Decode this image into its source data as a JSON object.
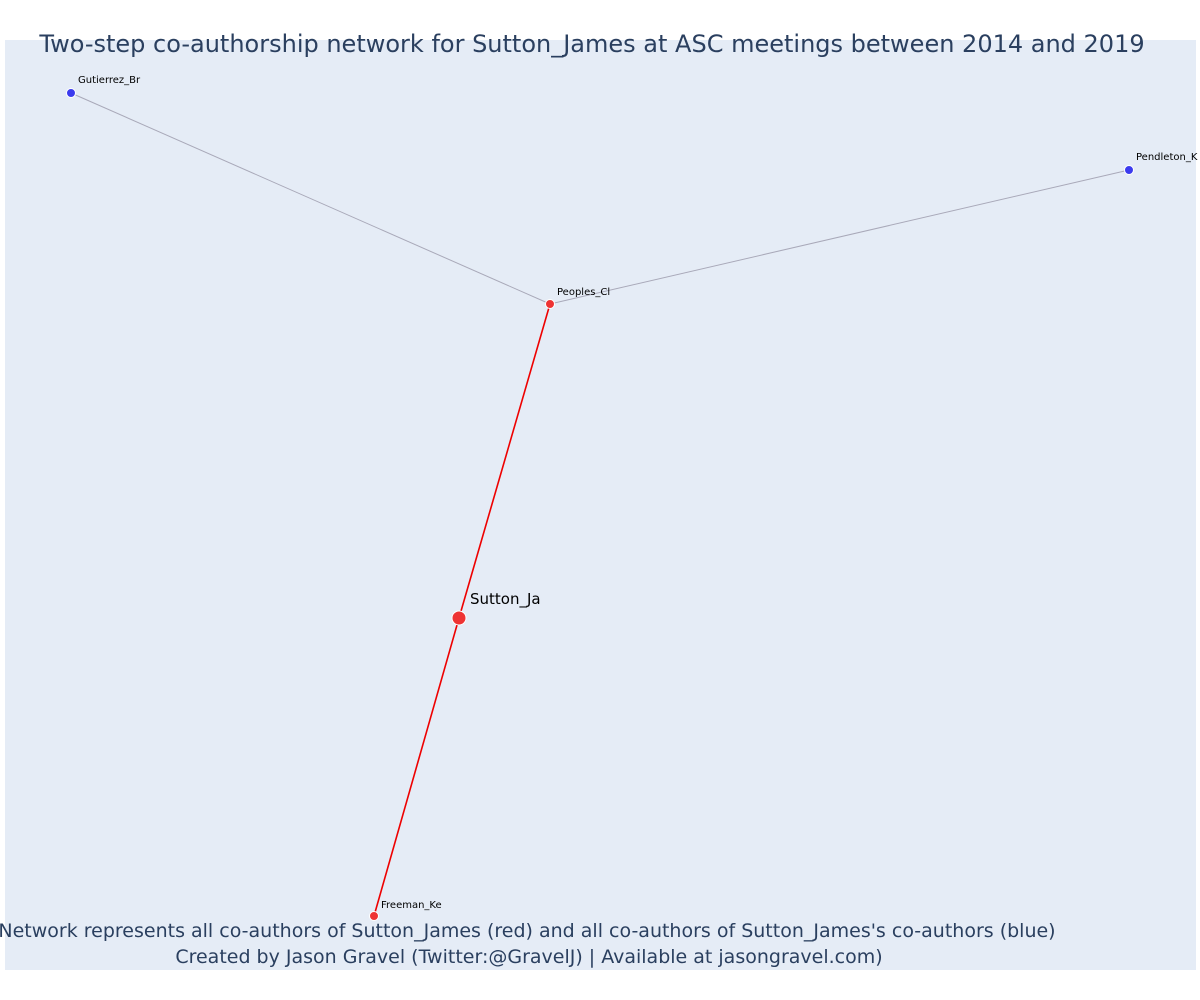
{
  "title": "Two-step co-authorship network for Sutton_James at ASC meetings between 2014 and 2019",
  "caption": {
    "line1": "Network represents all co-authors of Sutton_James (red) and all co-authors of Sutton_James's co-authors (blue)",
    "line2": "Created by Jason Gravel (Twitter:@GravelJ) | Available at jasongravel.com)"
  },
  "colors": {
    "plot_background": "#e5ecf6",
    "coauthor_red": "#ee3333",
    "second_step_blue": "#3b3bee",
    "edge_red": "#ee0000",
    "edge_grey": "#a9a9b9",
    "text": "#2a3f5f"
  },
  "network": {
    "nodes": [
      {
        "id": "sutton",
        "label": "Sutton_Ja",
        "group": "ego"
      },
      {
        "id": "peoples",
        "label": "Peoples_Cl",
        "group": "coauthor"
      },
      {
        "id": "freeman",
        "label": "Freeman_Ke",
        "group": "coauthor"
      },
      {
        "id": "gutierrez",
        "label": "Gutierrez_Br",
        "group": "second_step"
      },
      {
        "id": "pendleton",
        "label": "Pendleton_K",
        "group": "second_step"
      }
    ],
    "edges": [
      {
        "source": "sutton",
        "target": "peoples",
        "type": "ego"
      },
      {
        "source": "sutton",
        "target": "freeman",
        "type": "ego"
      },
      {
        "source": "peoples",
        "target": "gutierrez",
        "type": "second_step"
      },
      {
        "source": "peoples",
        "target": "pendleton",
        "type": "second_step"
      }
    ]
  }
}
